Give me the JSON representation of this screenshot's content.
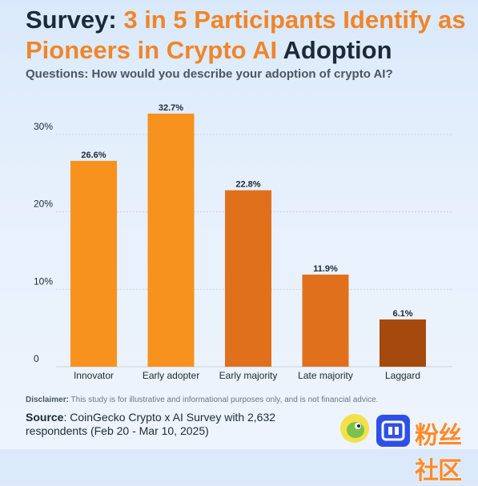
{
  "header": {
    "title_part1": "Survey: ",
    "title_part2": "3 in 5 Participants Identify as Pioneers in Crypto AI",
    "title_part3": " Adoption",
    "subtitle": "Questions: How would you describe your adoption of crypto AI?"
  },
  "footer": {
    "disclaimer_label": "Disclaimer:",
    "disclaimer_text": " This study is for illustrative and informational purposes only, and is not financial advice.",
    "source_label": "Source",
    "source_text": ": CoinGecko Crypto x AI Survey with 2,632 respondents (Feb 20 - Mar 10, 2025)",
    "watermark": "粉丝社区"
  },
  "chart_data": {
    "type": "bar",
    "categories": [
      "Innovator",
      "Early adopter",
      "Early majority",
      "Late majority",
      "Laggard"
    ],
    "values": [
      26.6,
      32.7,
      22.8,
      11.9,
      6.1
    ],
    "data_labels": [
      "26.6%",
      "32.7%",
      "22.8%",
      "11.9%",
      "6.1%"
    ],
    "yticks": [
      0,
      10,
      20,
      30
    ],
    "ytick_labels": [
      "0",
      "10%",
      "20%",
      "30%"
    ],
    "ylim": [
      0,
      32.7
    ],
    "grid": true,
    "colors": [
      "#f7921e",
      "#f7921e",
      "#e0701c",
      "#e0701c",
      "#a5490e"
    ]
  }
}
